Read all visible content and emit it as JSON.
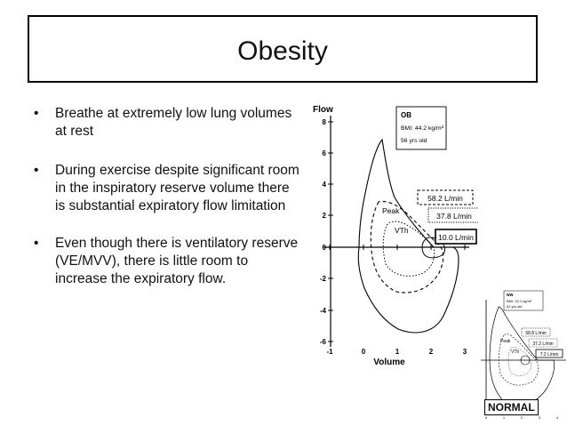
{
  "slide": {
    "title": "Obesity",
    "bullets": [
      {
        "marker": "•",
        "text": "Breathe at extremely low lung volumes at rest"
      },
      {
        "marker": "•",
        "text": "During exercise despite significant room in the inspiratory reserve volume there is substantial expiratory flow limitation"
      },
      {
        "marker": "•",
        "text": "Even though there is ventilatory reserve (VE/MVV), there is little room to increase the expiratory flow."
      }
    ]
  },
  "main_plot": {
    "y_axis_label": "Flow",
    "x_axis_label": "Volume",
    "y_ticks": [
      "8",
      "6",
      "4",
      "2",
      "0",
      "-2",
      "-4",
      "-6"
    ],
    "x_ticks": [
      "-1",
      "0",
      "1",
      "2",
      "3"
    ],
    "info_box": {
      "group": "OB",
      "bmi": "BMI: 44.2 kg/m²",
      "age": "56 yrs old"
    },
    "labels": {
      "peak": "Peak",
      "vth": "VTh"
    },
    "ve_boxes": [
      "58.2 L/min",
      "37.8 L/min",
      "10.0 L/min"
    ]
  },
  "inset_plot": {
    "info_box": {
      "group": "NW",
      "bmi": "BMI: 22.1 kg/m²",
      "age": "61 yrs old"
    },
    "ve_boxes": [
      "68.8 L/min",
      "37.2 L/min",
      "7.2 L/min"
    ],
    "labels": {
      "peak": "Peak",
      "vth": "VTh"
    },
    "x_ticks": [
      "0",
      "1",
      "2",
      "3",
      "4"
    ],
    "label": "NORMAL"
  }
}
